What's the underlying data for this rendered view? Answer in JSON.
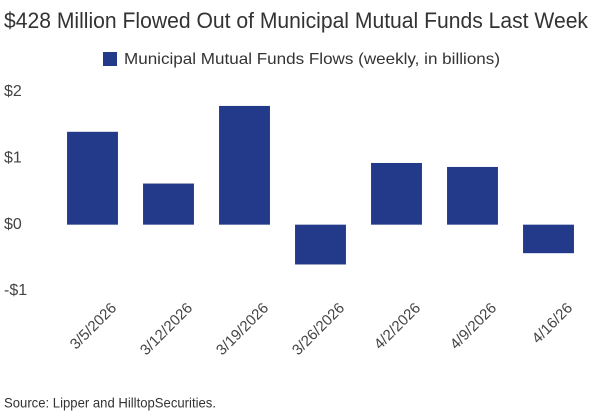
{
  "chart_data": {
    "type": "bar",
    "title": "$428 Million Flowed Out of Municipal Mutual Funds Last Week",
    "source": "Source: Lipper and HilltopSecurities.",
    "series": [
      {
        "name": "Municipal Mutual Funds Flows (weekly, in billions)",
        "color": "#233a8a",
        "values": [
          1.4,
          0.62,
          1.79,
          -0.6,
          0.93,
          0.87,
          -0.43
        ]
      }
    ],
    "categories": [
      "3/5/2026",
      "3/12/2026",
      "3/19/2026",
      "3/26/2026",
      "4/2/2026",
      "4/9/2026",
      "4/16/26"
    ],
    "ylim": [
      -1,
      2
    ],
    "yticks": [
      {
        "value": 2,
        "label": "$2"
      },
      {
        "value": 1,
        "label": "$1"
      },
      {
        "value": 0,
        "label": "$0"
      },
      {
        "value": -1,
        "label": "-$1"
      }
    ],
    "grid": false
  }
}
